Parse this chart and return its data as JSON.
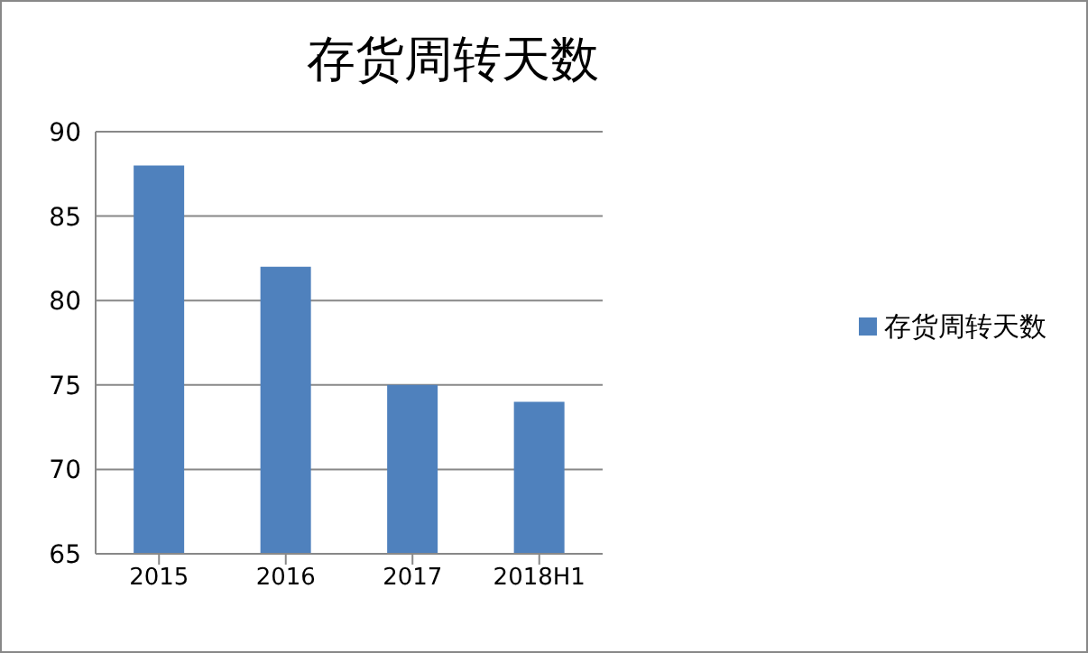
{
  "chart_data": {
    "type": "bar",
    "title": "存货周转天数",
    "categories": [
      "2015",
      "2016",
      "2017",
      "2018H1"
    ],
    "series": [
      {
        "name": "存货周转天数",
        "color": "#4f81bd",
        "values": [
          88,
          82,
          75,
          74
        ]
      }
    ],
    "ylim": [
      65,
      90
    ],
    "yticks": [
      65,
      70,
      75,
      80,
      85,
      90
    ],
    "grid": "y",
    "legend": "right"
  }
}
